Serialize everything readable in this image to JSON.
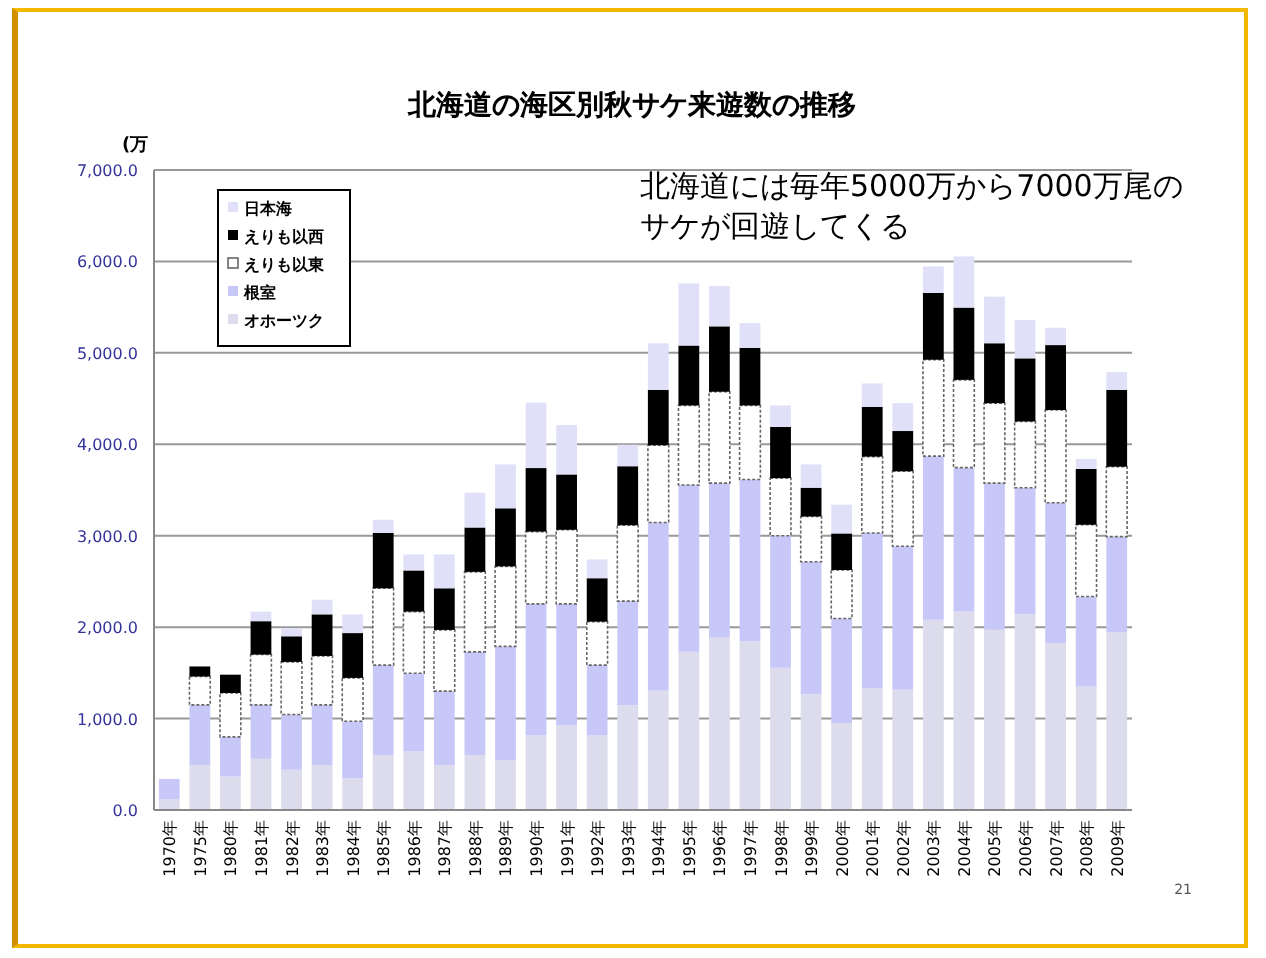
{
  "chart_data": {
    "type": "bar",
    "stacked": true,
    "title": "北海道の海区別秋サケ来遊数の推移",
    "ylabel": "(万",
    "annotations": [
      "北海道には毎年5000万から7000万尾のサケが回遊してくる",
      "21"
    ],
    "categories": [
      "1970年",
      "1975年",
      "1980年",
      "1981年",
      "1982年",
      "1983年",
      "1984年",
      "1985年",
      "1986年",
      "1987年",
      "1988年",
      "1989年",
      "1990年",
      "1991年",
      "1992年",
      "1993年",
      "1994年",
      "1995年",
      "1996年",
      "1997年",
      "1998年",
      "1999年",
      "2000年",
      "2001年",
      "2002年",
      "2003年",
      "2004年",
      "2005年",
      "2006年",
      "2007年",
      "2008年",
      "2009年"
    ],
    "series": [
      {
        "name": "オホーツク",
        "color": "#dcdcec",
        "values": [
          120,
          490,
          365,
          560,
          440,
          490,
          345,
          600,
          640,
          490,
          600,
          545,
          815,
          925,
          815,
          1145,
          1305,
          1730,
          1885,
          1845,
          1555,
          1265,
          950,
          1330,
          1315,
          2080,
          2170,
          1970,
          2140,
          1825,
          1350,
          1945
        ]
      },
      {
        "name": "根室",
        "color": "#c8c8f8",
        "values": [
          220,
          660,
          435,
          590,
          605,
          660,
          625,
          985,
          855,
          810,
          1130,
          1245,
          1440,
          1330,
          770,
          1140,
          1840,
          1825,
          1690,
          1770,
          1445,
          1450,
          1145,
          1700,
          1570,
          1790,
          1575,
          1605,
          1385,
          1535,
          985,
          1045
        ]
      },
      {
        "name": "えりも以東",
        "color": "#ffffff",
        "values": [
          0,
          310,
          480,
          550,
          575,
          535,
          475,
          840,
          675,
          670,
          875,
          875,
          790,
          810,
          475,
          830,
          845,
          870,
          1000,
          810,
          630,
          495,
          530,
          835,
          820,
          1055,
          960,
          875,
          725,
          1015,
          785,
          765
        ]
      },
      {
        "name": "えりも以西",
        "color": "#000000",
        "values": [
          0,
          110,
          200,
          365,
          280,
          455,
          490,
          605,
          450,
          455,
          485,
          635,
          695,
          605,
          475,
          645,
          605,
          655,
          715,
          630,
          560,
          315,
          400,
          545,
          440,
          730,
          790,
          655,
          690,
          710,
          610,
          840
        ]
      },
      {
        "name": "日本海",
        "color": "#e0e0f8",
        "values": [
          0,
          null,
          null,
          105,
          85,
          160,
          205,
          145,
          175,
          370,
          380,
          480,
          715,
          540,
          205,
          235,
          510,
          680,
          440,
          270,
          235,
          255,
          315,
          255,
          305,
          290,
          560,
          510,
          420,
          190,
          110,
          195
        ]
      }
    ],
    "ylim": [
      0,
      7000
    ],
    "yticks": [
      {
        "value": 0,
        "label": "0.0"
      },
      {
        "value": 1000,
        "label": "1,000.0"
      },
      {
        "value": 2000,
        "label": "2,000.0"
      },
      {
        "value": 3000,
        "label": "3,000.0"
      },
      {
        "value": 4000,
        "label": "4,000.0"
      },
      {
        "value": 5000,
        "label": "5,000.0"
      },
      {
        "value": 6000,
        "label": "6,000.0"
      },
      {
        "value": 7000,
        "label": "7,000.0"
      }
    ],
    "grid": "y",
    "legend": "top left"
  }
}
